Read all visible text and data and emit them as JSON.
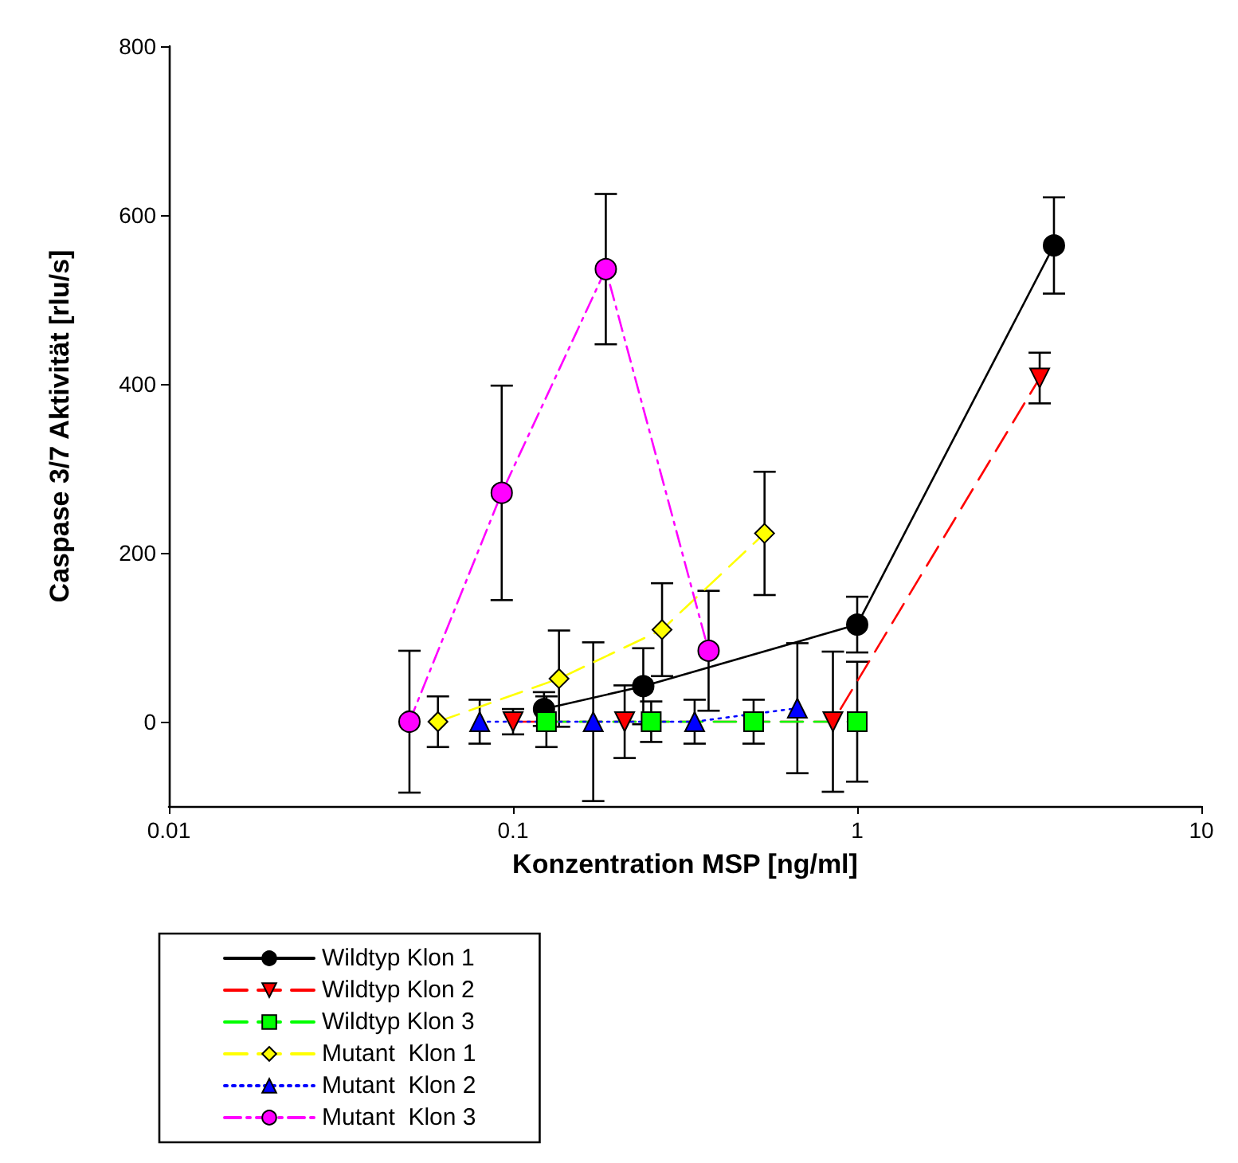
{
  "chart_data": {
    "type": "line",
    "xlabel": "Konzentration MSP [ng/ml]",
    "ylabel": "Caspase 3/7 Aktivität [rlu/s]",
    "log": "x",
    "xlim": [
      0.01,
      10
    ],
    "xticks": [
      0.01,
      0.1,
      1,
      10
    ],
    "ylim": [
      -100,
      800
    ],
    "yticks": [
      0,
      200,
      400,
      600,
      800
    ],
    "grid": false,
    "legend": "bottom left",
    "series": [
      {
        "name": "Wildtyp Klon 1",
        "color": "#000000",
        "marker": "circle",
        "line_style": "solid",
        "x": [
          0.123,
          0.239,
          1.0,
          3.73
        ],
        "values": [
          15,
          42,
          115,
          564
        ],
        "errors": [
          20,
          45,
          33,
          57
        ]
      },
      {
        "name": "Wildtyp Klon 2",
        "color": "#ff0000",
        "marker": "triangle-down",
        "line_style": "dashed",
        "x": [
          0.1,
          0.211,
          0.85,
          3.39
        ],
        "values": [
          0,
          0,
          0,
          407
        ],
        "errors": [
          15,
          43,
          83,
          30
        ]
      },
      {
        "name": "Wildtyp Klon 3",
        "color": "#00ff00",
        "marker": "square",
        "line_style": "dashed",
        "x": [
          0.125,
          0.252,
          0.5,
          1.0
        ],
        "values": [
          0,
          0,
          0,
          0
        ],
        "errors": [
          30,
          24,
          26,
          71
        ]
      },
      {
        "name": "Mutant  Klon 1",
        "color": "#ffff00",
        "marker": "diamond",
        "line_style": "dashed",
        "x": [
          0.0605,
          0.136,
          0.271,
          0.538
        ],
        "values": [
          0,
          51,
          109,
          223
        ],
        "errors": [
          30,
          57,
          55,
          73
        ]
      },
      {
        "name": "Mutant  Klon 2",
        "color": "#0000ff",
        "marker": "triangle",
        "line_style": "dotted",
        "x": [
          0.08,
          0.171,
          0.337,
          0.67
        ],
        "values": [
          0,
          0,
          0,
          16
        ],
        "errors": [
          26,
          94,
          26,
          77
        ]
      },
      {
        "name": "Mutant  Klon 3",
        "color": "#ff00ff",
        "marker": "circle",
        "line_style": "dashdot",
        "x": [
          0.05,
          0.0927,
          0.186,
          0.37
        ],
        "values": [
          0,
          271,
          536,
          84
        ],
        "errors": [
          84,
          127,
          89,
          71
        ]
      }
    ]
  }
}
